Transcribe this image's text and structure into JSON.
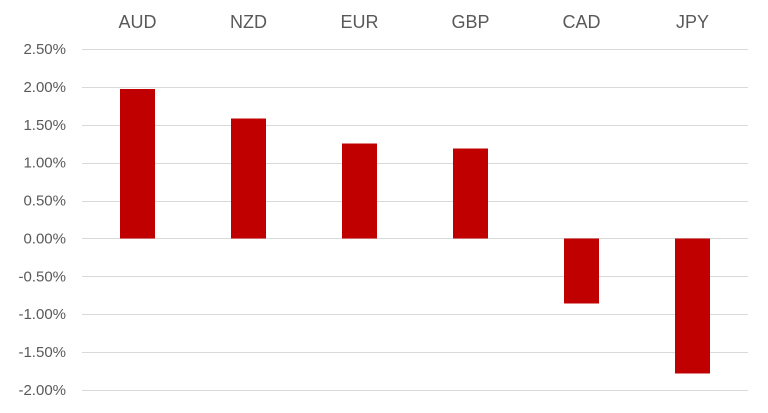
{
  "colors": {
    "bar": "#c00000",
    "grid": "#d9d9d9",
    "text": "#595959"
  },
  "chart_data": {
    "type": "bar",
    "categories": [
      "AUD",
      "NZD",
      "EUR",
      "GBP",
      "CAD",
      "JPY"
    ],
    "values": [
      1.97,
      1.58,
      1.25,
      1.19,
      -0.86,
      -1.78
    ],
    "ylim": [
      -2.0,
      2.5
    ],
    "yticks": [
      2.5,
      2.0,
      1.5,
      1.0,
      0.5,
      0.0,
      -0.5,
      -1.0,
      -1.5,
      -2.0
    ],
    "ytick_labels": [
      "2.50%",
      "2.00%",
      "1.50%",
      "1.00%",
      "0.50%",
      "0.00%",
      "-0.50%",
      "-1.00%",
      "-1.50%",
      "-2.00%"
    ],
    "category_axis_position": "top",
    "grid": true,
    "legend": "none"
  }
}
